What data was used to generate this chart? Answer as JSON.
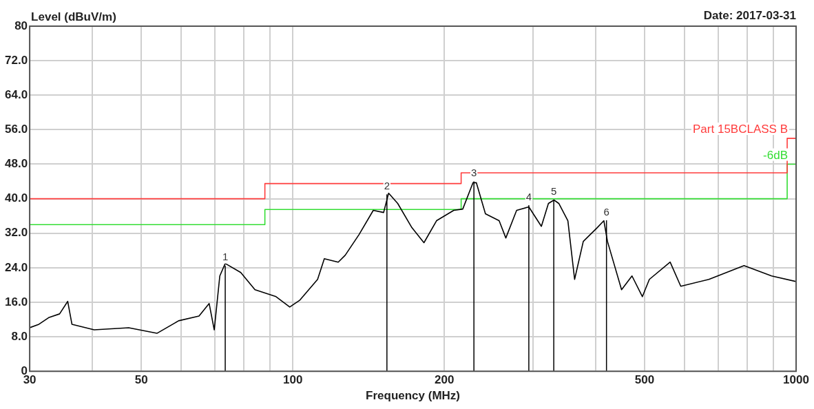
{
  "chart_data": {
    "type": "line",
    "xlabel": "Frequency (MHz)",
    "ylabel": "Level (dBuV/m)",
    "log": "x",
    "xlim": [
      30,
      1000
    ],
    "ylim": [
      0,
      80
    ],
    "xticks": [
      30,
      {
        "value": 40,
        "label": null
      },
      50,
      {
        "value": 60,
        "label": null
      },
      {
        "value": 70,
        "label": null
      },
      {
        "value": 80,
        "label": null
      },
      {
        "value": 90,
        "label": null
      },
      100,
      200,
      {
        "value": 300,
        "label": null
      },
      {
        "value": 400,
        "label": null
      },
      500,
      {
        "value": 600,
        "label": null
      },
      {
        "value": 700,
        "label": null
      },
      {
        "value": 800,
        "label": null
      },
      {
        "value": 900,
        "label": null
      },
      1000
    ],
    "yticks": [
      0,
      {
        "value": 8,
        "label": "8.0"
      },
      {
        "value": 16,
        "label": "16.0"
      },
      {
        "value": 24,
        "label": "24.0"
      },
      {
        "value": 32,
        "label": "32.0"
      },
      {
        "value": 40,
        "label": "40.0"
      },
      {
        "value": 48,
        "label": "48.0"
      },
      {
        "value": 56,
        "label": "56.0"
      },
      {
        "value": 64,
        "label": "64.0"
      },
      {
        "value": 72,
        "label": "72.0"
      },
      80
    ],
    "grid": true,
    "legend": false,
    "marker": "none",
    "line_style": "solid",
    "series": [
      {
        "color": "#000000",
        "x": [
          30,
          31.3,
          32.8,
          34.4,
          35.7,
          36.4,
          40.3,
          47.2,
          53.7,
          59.3,
          65.1,
          68.2,
          69.8,
          71.6,
          73.4,
          78.8,
          84.1,
          92.6,
          98.6,
          103.3,
          112,
          115.5,
          123.1,
          127.1,
          135.4,
          144.5,
          151.5,
          155,
          161.6,
          172.4,
          182.2,
          193,
          208.8,
          217.6,
          228,
          231.6,
          241.4,
          257,
          265,
          278.4,
          294.4,
          311.8,
          322,
          330.3,
          337.7,
          352,
          363,
          377.7,
          402.6,
          415,
          421.9,
          450,
          472,
          495,
          511,
          562,
          590,
          671,
          788,
          894,
          1000
        ],
        "values": [
          10.1,
          10.9,
          12.5,
          13.3,
          16.2,
          10.9,
          9.6,
          10.1,
          8.8,
          11.7,
          12.8,
          15.7,
          9.6,
          22.1,
          25,
          22.9,
          18.9,
          17.3,
          14.9,
          16.5,
          21.3,
          26.1,
          25.3,
          26.9,
          31.7,
          37.3,
          36.8,
          41.3,
          38.9,
          33.3,
          29.8,
          34.9,
          37.3,
          37.6,
          43.7,
          43.7,
          36.5,
          34.9,
          30.9,
          37.3,
          38.1,
          33.6,
          38.9,
          39.7,
          38.9,
          34.9,
          21.3,
          30.1,
          33.3,
          34.9,
          30.1,
          18.9,
          22.1,
          17.3,
          21.3,
          25.3,
          19.7,
          21.3,
          24.5,
          22.1,
          20.8
        ]
      },
      {
        "type": "step",
        "name": "Part 15BCLASS B",
        "color": "#ff3b3b",
        "x": [
          30,
          88,
          216,
          960,
          1000
        ],
        "values": [
          40,
          43.5,
          46,
          54,
          54
        ]
      },
      {
        "type": "step",
        "name": "-6dB",
        "color": "#33dd33",
        "x": [
          30,
          88,
          216,
          960,
          1000
        ],
        "values": [
          34,
          37.5,
          40,
          48,
          48
        ]
      }
    ],
    "annotations": [
      {
        "text": "1",
        "x": 73.4,
        "y": 24.5
      },
      {
        "text": "2",
        "x": 153.8,
        "y": 41
      },
      {
        "text": "3",
        "x": 229,
        "y": 44
      },
      {
        "text": "4",
        "x": 294.4,
        "y": 38.5
      },
      {
        "text": "5",
        "x": 330,
        "y": 39.7
      },
      {
        "text": "6",
        "x": 420,
        "y": 35
      },
      "Date: 2017-03-31"
    ]
  }
}
